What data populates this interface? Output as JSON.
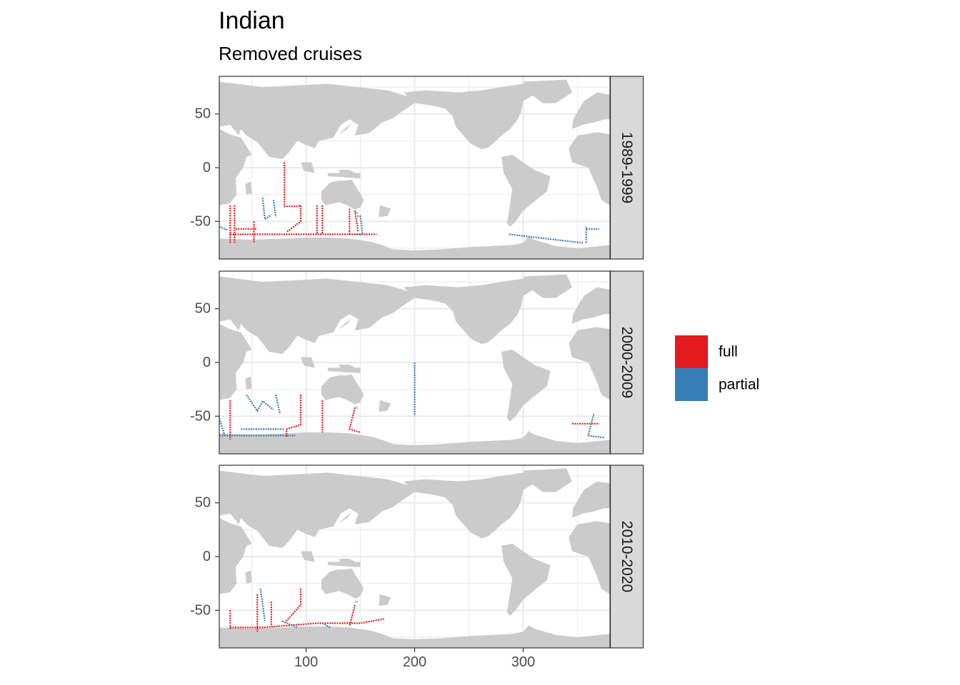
{
  "title": "Indian",
  "subtitle": "Removed cruises",
  "chart_data": {
    "type": "map",
    "x_axis": {
      "ticks": [
        100,
        200,
        300
      ],
      "range": [
        20,
        380
      ]
    },
    "y_axis": {
      "ticks": [
        50,
        0,
        -50
      ],
      "range": [
        -85,
        85
      ]
    },
    "grid": true,
    "legend": {
      "placement": "right",
      "items": [
        {
          "key": "full",
          "label": "full",
          "color": "#e41a1c"
        },
        {
          "key": "partial",
          "label": "partial",
          "color": "#377eb8"
        }
      ]
    },
    "colors": {
      "land": "#cbcbcb",
      "panel_bg": "#ffffff",
      "grid": "#ebebeb",
      "strip_bg": "#d9d9d9"
    },
    "panels": [
      {
        "label": "1989-1999",
        "tracks": [
          {
            "type": "full",
            "points": [
              [
                30,
                -35
              ],
              [
                30,
                -70
              ]
            ]
          },
          {
            "type": "full",
            "points": [
              [
                30,
                -62
              ],
              [
                50,
                -62
              ],
              [
                100,
                -62
              ],
              [
                140,
                -62
              ],
              [
                165,
                -62
              ]
            ]
          },
          {
            "type": "full",
            "points": [
              [
                34,
                -35
              ],
              [
                34,
                -70
              ]
            ]
          },
          {
            "type": "full",
            "points": [
              [
                35,
                -57
              ],
              [
                55,
                -57
              ]
            ]
          },
          {
            "type": "full",
            "points": [
              [
                52,
                -50
              ],
              [
                52,
                -70
              ]
            ]
          },
          {
            "type": "full",
            "points": [
              [
                80,
                5
              ],
              [
                80,
                -36
              ],
              [
                92,
                -36
              ],
              [
                95,
                -35
              ],
              [
                95,
                -50
              ],
              [
                82,
                -60
              ]
            ]
          },
          {
            "type": "full",
            "points": [
              [
                110,
                -35
              ],
              [
                110,
                -62
              ]
            ]
          },
          {
            "type": "full",
            "points": [
              [
                115,
                -35
              ],
              [
                115,
                -62
              ]
            ]
          },
          {
            "type": "full",
            "points": [
              [
                140,
                -62
              ],
              [
                140,
                -38
              ]
            ]
          },
          {
            "type": "full",
            "points": [
              [
                145,
                -40
              ],
              [
                148,
                -60
              ]
            ]
          },
          {
            "type": "partial",
            "points": [
              [
                20,
                -55
              ],
              [
                28,
                -58
              ]
            ]
          },
          {
            "type": "partial",
            "points": [
              [
                60,
                -28
              ],
              [
                62,
                -48
              ],
              [
                68,
                -44
              ]
            ]
          },
          {
            "type": "partial",
            "points": [
              [
                70,
                -30
              ],
              [
                72,
                -46
              ]
            ]
          },
          {
            "type": "partial",
            "points": [
              [
                145,
                -45
              ],
              [
                150,
                -45
              ],
              [
                152,
                -62
              ],
              [
                145,
                -62
              ]
            ]
          },
          {
            "type": "partial",
            "points": [
              [
                287,
                -62
              ],
              [
                355,
                -70
              ]
            ]
          },
          {
            "type": "partial",
            "points": [
              [
                358,
                -55
              ],
              [
                358,
                -70
              ]
            ]
          },
          {
            "type": "partial",
            "points": [
              [
                358,
                -57
              ],
              [
                370,
                -57
              ]
            ]
          }
        ]
      },
      {
        "label": "2000-2009",
        "tracks": [
          {
            "type": "full",
            "points": [
              [
                30,
                -35
              ],
              [
                30,
                -72
              ]
            ]
          },
          {
            "type": "full",
            "points": [
              [
                95,
                -30
              ],
              [
                95,
                -58
              ],
              [
                82,
                -62
              ],
              [
                82,
                -70
              ]
            ]
          },
          {
            "type": "full",
            "points": [
              [
                115,
                -35
              ],
              [
                115,
                -65
              ]
            ]
          },
          {
            "type": "full",
            "points": [
              [
                145,
                -42
              ],
              [
                140,
                -62
              ],
              [
                150,
                -65
              ]
            ]
          },
          {
            "type": "full",
            "points": [
              [
                345,
                -57
              ],
              [
                370,
                -57
              ]
            ]
          },
          {
            "type": "partial",
            "points": [
              [
                20,
                -52
              ],
              [
                25,
                -68
              ]
            ]
          },
          {
            "type": "partial",
            "points": [
              [
                45,
                -30
              ],
              [
                55,
                -45
              ],
              [
                60,
                -36
              ],
              [
                70,
                -44
              ]
            ]
          },
          {
            "type": "partial",
            "points": [
              [
                72,
                -30
              ],
              [
                76,
                -48
              ]
            ]
          },
          {
            "type": "partial",
            "points": [
              [
                40,
                -62
              ],
              [
                80,
                -62
              ]
            ]
          },
          {
            "type": "partial",
            "points": [
              [
                20,
                -68
              ],
              [
                90,
                -68
              ]
            ]
          },
          {
            "type": "partial",
            "points": [
              [
                200,
                0
              ],
              [
                200,
                -50
              ]
            ]
          },
          {
            "type": "partial",
            "points": [
              [
                365,
                -48
              ],
              [
                360,
                -68
              ],
              [
                375,
                -70
              ]
            ]
          }
        ]
      },
      {
        "label": "2010-2020",
        "tracks": [
          {
            "type": "full",
            "points": [
              [
                30,
                -50
              ],
              [
                30,
                -68
              ]
            ]
          },
          {
            "type": "full",
            "points": [
              [
                30,
                -66
              ],
              [
                60,
                -66
              ],
              [
                110,
                -62
              ],
              [
                150,
                -62
              ],
              [
                172,
                -58
              ]
            ]
          },
          {
            "type": "full",
            "points": [
              [
                55,
                -35
              ],
              [
                55,
                -70
              ]
            ]
          },
          {
            "type": "full",
            "points": [
              [
                68,
                -42
              ],
              [
                68,
                -65
              ]
            ]
          },
          {
            "type": "full",
            "points": [
              [
                95,
                -30
              ],
              [
                95,
                -45
              ],
              [
                80,
                -62
              ]
            ]
          },
          {
            "type": "full",
            "points": [
              [
                145,
                -45
              ],
              [
                140,
                -65
              ]
            ]
          },
          {
            "type": "partial",
            "points": [
              [
                58,
                -30
              ],
              [
                62,
                -60
              ]
            ]
          },
          {
            "type": "partial",
            "points": [
              [
                78,
                -60
              ],
              [
                92,
                -66
              ]
            ]
          },
          {
            "type": "partial",
            "points": [
              [
                115,
                -62
              ],
              [
                122,
                -66
              ]
            ]
          }
        ]
      }
    ]
  }
}
